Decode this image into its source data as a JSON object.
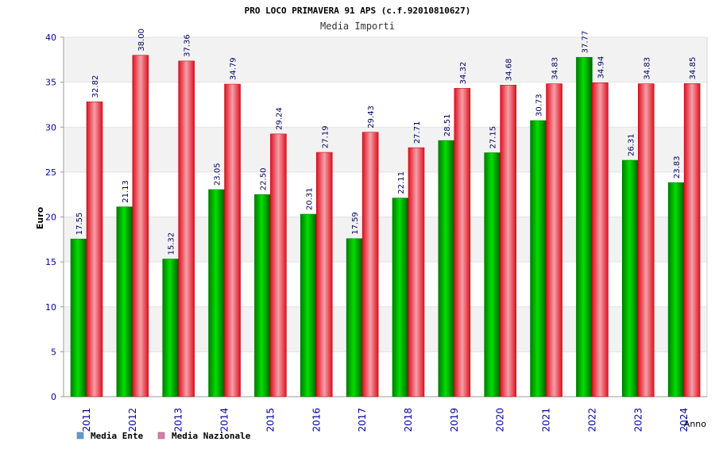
{
  "chart_data": {
    "type": "bar",
    "title": "PRO LOCO PRIMAVERA 91 APS (c.f.92010810627)",
    "subtitle": "Media Importi",
    "xlabel": "Anno",
    "ylabel": "Euro",
    "ylim": [
      0,
      40
    ],
    "yticks": [
      0,
      5,
      10,
      15,
      20,
      25,
      30,
      35,
      40
    ],
    "grid": true,
    "legend_position": "bottom-left",
    "categories": [
      "2011",
      "2012",
      "2013",
      "2014",
      "2015",
      "2016",
      "2017",
      "2018",
      "2019",
      "2020",
      "2021",
      "2022",
      "2023",
      "2024"
    ],
    "series": [
      {
        "name": "Media Ente",
        "legend_color": "#5b9bd5",
        "bar_color": "#00b000",
        "values": [
          17.55,
          21.13,
          15.32,
          23.05,
          22.5,
          20.31,
          17.59,
          22.11,
          28.51,
          27.15,
          30.73,
          37.77,
          26.31,
          23.83
        ],
        "labels": [
          "17.55",
          "21.13",
          "15.32",
          "23.05",
          "22.50",
          "20.31",
          "17.59",
          "22.11",
          "28.51",
          "27.15",
          "30.73",
          "37.77",
          "26.31",
          "23.83"
        ]
      },
      {
        "name": "Media Nazionale",
        "legend_color": "#e377a8",
        "bar_color": "#e8202a",
        "values": [
          32.82,
          38.0,
          37.36,
          34.79,
          29.24,
          27.19,
          29.43,
          27.71,
          34.32,
          34.68,
          34.83,
          34.94,
          34.83,
          34.85
        ],
        "labels": [
          "32.82",
          "38.00",
          "37.36",
          "34.79",
          "29.24",
          "27.19",
          "29.43",
          "27.71",
          "34.32",
          "34.68",
          "34.83",
          "34.94",
          "34.83",
          "34.85"
        ]
      }
    ]
  }
}
